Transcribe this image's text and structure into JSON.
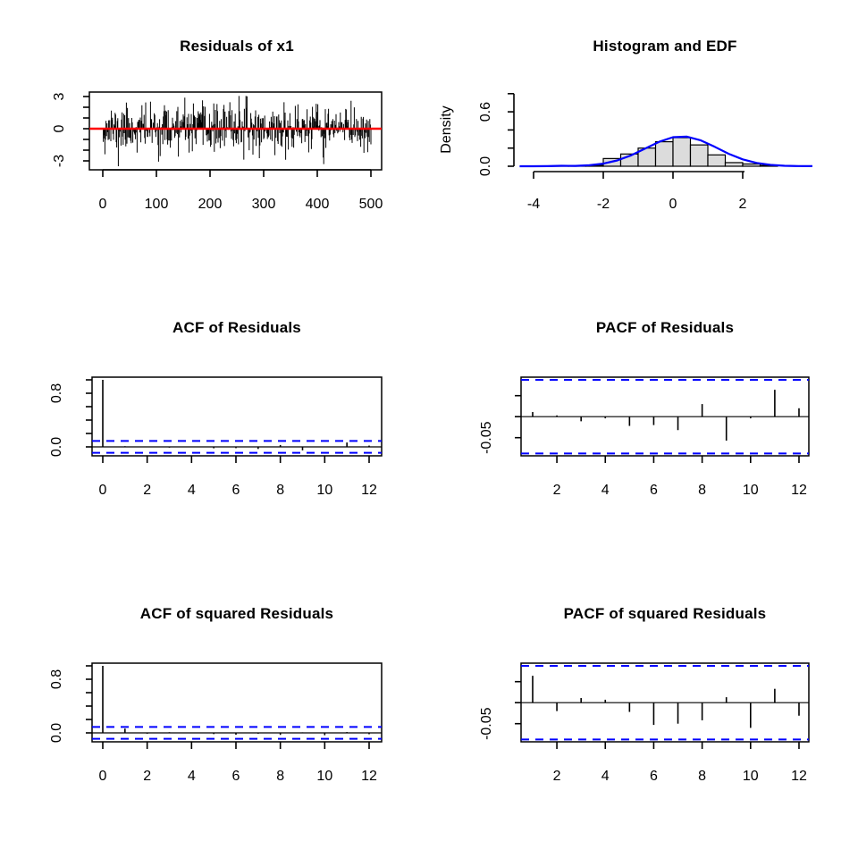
{
  "figure": {
    "background": "#ffffff"
  },
  "colors": {
    "black": "#000000",
    "reference_red": "#ff0000",
    "confidence_blue": "#0000ff",
    "hist_fill": "#dcdcdc",
    "hist_stroke": "#000000"
  },
  "chart_data": [
    {
      "id": "residuals",
      "kind": "residual_series",
      "type": "bar",
      "title": "Residuals of x1",
      "x_ticks": [
        0,
        100,
        200,
        300,
        400,
        500
      ],
      "x_tick_labels": [
        "0",
        "100",
        "200",
        "300",
        "400",
        "500"
      ],
      "y_ticks": [
        -3,
        -2,
        -1,
        0,
        1,
        2,
        3
      ],
      "y_labeled": [
        {
          "v": -3,
          "t": "-3"
        },
        {
          "v": 0,
          "t": "0"
        },
        {
          "v": 3,
          "t": "3"
        }
      ],
      "xlim": [
        -25,
        520
      ],
      "ylim": [
        -3.83,
        3.42
      ],
      "reference_line": {
        "y": 0,
        "color": "#ff0000"
      },
      "series": {
        "generator": "seeded-normal",
        "n": 500,
        "sd": 1.08,
        "seed": 11,
        "clip_min": -3.55,
        "clip_max": 3.05,
        "anchors": [
          [
            28,
            -3.5
          ],
          [
            140,
            -2.6
          ],
          [
            253,
            3.05
          ],
          [
            340,
            -2.9
          ],
          [
            411,
            -3.3
          ],
          [
            462,
            2.6
          ]
        ]
      }
    },
    {
      "id": "hist_edf",
      "kind": "histogram_density",
      "type": "histogram",
      "title": "Histogram and EDF",
      "ylabel": "Density",
      "x_ticks": [
        -4,
        -2,
        0,
        2
      ],
      "x_tick_labels": [
        "-4",
        "-2",
        "0",
        "2"
      ],
      "y_ticks": [
        0,
        0.2,
        0.4,
        0.6,
        0.8
      ],
      "y_labeled": [
        {
          "v": 0,
          "t": "0.0"
        },
        {
          "v": 0.6,
          "t": "0.6"
        }
      ],
      "bins": {
        "start": -3.5,
        "width": 0.5,
        "densities": [
          0.004,
          0.004,
          0.012,
          0.085,
          0.135,
          0.2,
          0.27,
          0.315,
          0.235,
          0.125,
          0.04,
          0.025,
          0.01
        ]
      },
      "curve": {
        "x": [
          -4.4,
          -4.0,
          -3.6,
          -3.2,
          -2.8,
          -2.4,
          -2.0,
          -1.6,
          -1.2,
          -0.8,
          -0.4,
          0.0,
          0.4,
          0.8,
          1.2,
          1.6,
          2.0,
          2.4,
          2.8,
          3.2,
          3.6,
          4.0
        ],
        "y": [
          0.0,
          0.0,
          0.001,
          0.005,
          0.004,
          0.011,
          0.029,
          0.064,
          0.12,
          0.194,
          0.269,
          0.32,
          0.326,
          0.285,
          0.214,
          0.137,
          0.076,
          0.036,
          0.015,
          0.005,
          0.002,
          0.001
        ]
      }
    },
    {
      "id": "acf_res",
      "kind": "acf",
      "type": "bar",
      "title": "ACF of Residuals",
      "x_ticks": [
        0,
        2,
        4,
        6,
        8,
        10,
        12
      ],
      "x_tick_labels": [
        "0",
        "2",
        "4",
        "6",
        "8",
        "10",
        "12"
      ],
      "y_ticks": [
        0,
        0.2,
        0.4,
        0.6,
        0.8,
        1.0
      ],
      "y_labeled": [
        {
          "v": 0,
          "t": "0.0"
        },
        {
          "v": 0.8,
          "t": "0.8"
        }
      ],
      "conf_bound": 0.0877,
      "lags": [
        0,
        1,
        2,
        3,
        4,
        5,
        6,
        7,
        8,
        9,
        10,
        11,
        12
      ],
      "values": [
        1,
        0.01,
        0.004,
        -0.011,
        -0.005,
        -0.021,
        -0.019,
        -0.031,
        0.028,
        -0.052,
        -0.005,
        0.065,
        0.019
      ]
    },
    {
      "id": "pacf_res",
      "kind": "pacf",
      "type": "bar",
      "title": "PACF of Residuals",
      "x_ticks": [
        2,
        4,
        6,
        8,
        10,
        12
      ],
      "x_tick_labels": [
        "2",
        "4",
        "6",
        "8",
        "10",
        "12"
      ],
      "y_ticks": [
        0.05,
        0,
        -0.05
      ],
      "y_labeled": [
        {
          "v": -0.05,
          "t": "-0.05"
        }
      ],
      "conf_bound": 0.0877,
      "lags": [
        1,
        2,
        3,
        4,
        5,
        6,
        7,
        8,
        9,
        10,
        11,
        12
      ],
      "values": [
        0.011,
        0.003,
        -0.011,
        -0.004,
        -0.022,
        -0.02,
        -0.032,
        0.03,
        -0.057,
        -0.004,
        0.064,
        0.02
      ]
    },
    {
      "id": "acf_sq",
      "kind": "acf",
      "type": "bar",
      "title": "ACF of squared Residuals",
      "x_ticks": [
        0,
        2,
        4,
        6,
        8,
        10,
        12
      ],
      "x_tick_labels": [
        "0",
        "2",
        "4",
        "6",
        "8",
        "10",
        "12"
      ],
      "y_ticks": [
        0,
        0.2,
        0.4,
        0.6,
        0.8,
        1.0
      ],
      "y_labeled": [
        {
          "v": 0,
          "t": "0.0"
        },
        {
          "v": 0.8,
          "t": "0.8"
        }
      ],
      "conf_bound": 0.0877,
      "lags": [
        0,
        1,
        2,
        3,
        4,
        5,
        6,
        7,
        8,
        9,
        10,
        11,
        12
      ],
      "values": [
        1,
        0.064,
        -0.012,
        0.01,
        0.004,
        -0.018,
        -0.028,
        -0.012,
        -0.03,
        0.008,
        -0.035,
        0.012,
        -0.02
      ]
    },
    {
      "id": "pacf_sq",
      "kind": "pacf",
      "type": "bar",
      "title": "PACF of squared Residuals",
      "x_ticks": [
        2,
        4,
        6,
        8,
        10,
        12
      ],
      "x_tick_labels": [
        "2",
        "4",
        "6",
        "8",
        "10",
        "12"
      ],
      "y_ticks": [
        0.05,
        0,
        -0.05
      ],
      "y_labeled": [
        {
          "v": -0.05,
          "t": "-0.05"
        }
      ],
      "conf_bound": 0.0877,
      "lags": [
        1,
        2,
        3,
        4,
        5,
        6,
        7,
        8,
        9,
        10,
        11,
        12
      ],
      "values": [
        0.064,
        -0.02,
        0.011,
        0.007,
        -0.022,
        -0.053,
        -0.05,
        -0.042,
        0.013,
        -0.06,
        0.033,
        -0.031
      ]
    }
  ]
}
